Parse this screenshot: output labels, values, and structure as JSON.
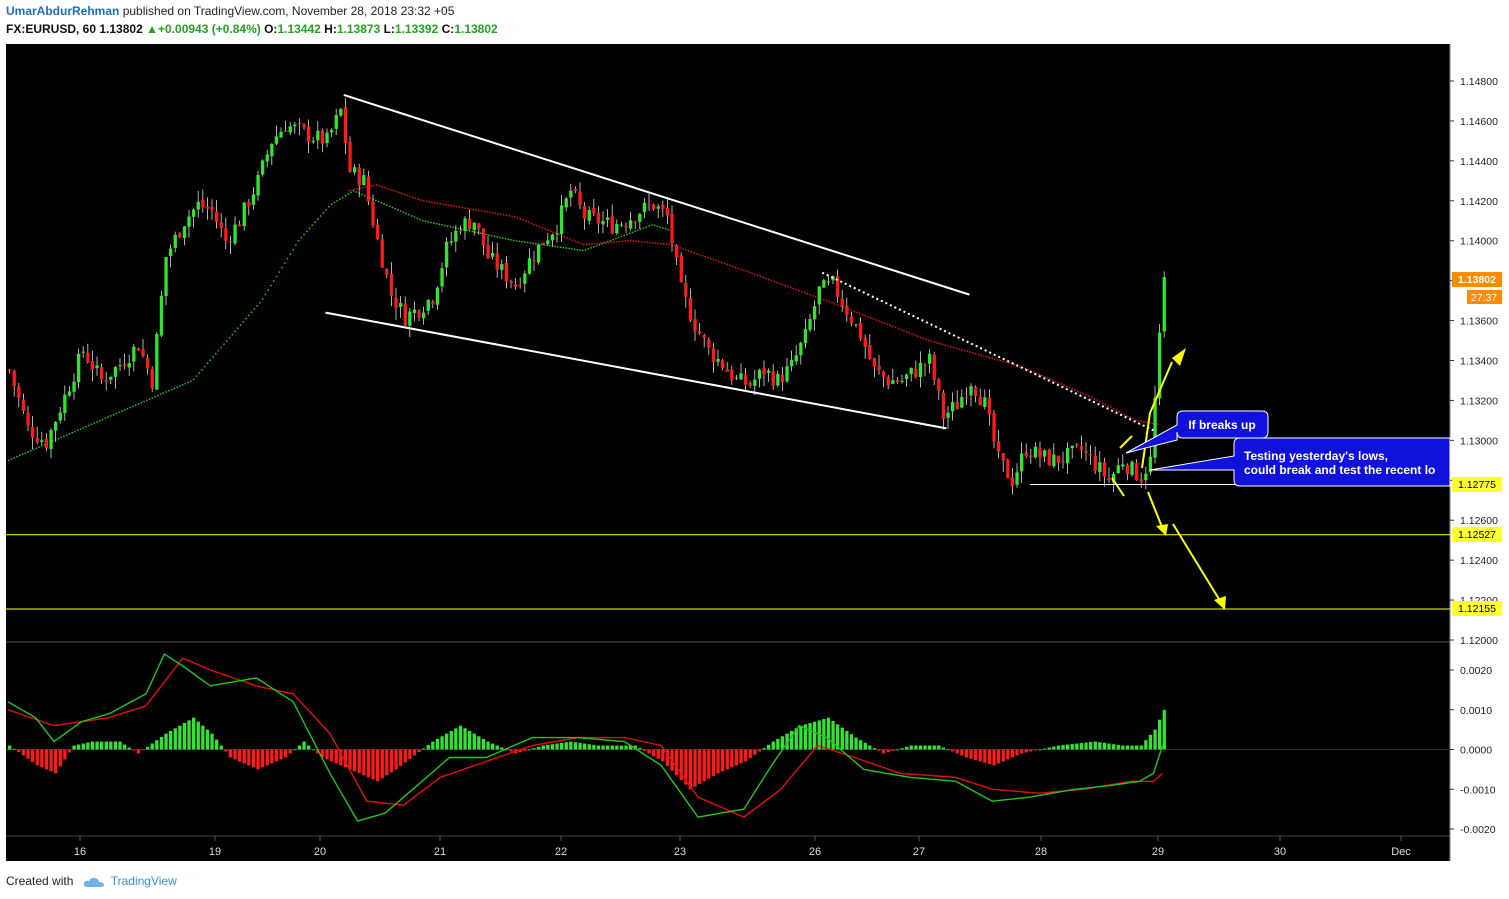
{
  "header": {
    "author": "UmarAbdurRehman",
    "published_text": "published on TradingView.com, November 28, 2018 23:32 +05",
    "symbol": "FX:EURUSD, 60",
    "last": "1.13802",
    "change_arrow": "▲",
    "change": "+0.00943 (+0.84%)",
    "o_label": "O:",
    "o_value": "1.13442",
    "h_label": "H:",
    "h_value": "1.13873",
    "l_label": "L:",
    "l_value": "1.13392",
    "c_label": "C:",
    "c_value": "1.13802"
  },
  "footer": {
    "created_with": "Created with",
    "brand": "TradingView"
  },
  "colors": {
    "bull": "#2ee62e",
    "bear": "#ff1a1a",
    "background": "#000000",
    "sma_fast": "#e01010",
    "sma_slow": "#21c421",
    "annotation": "#ffff00",
    "callout": "#1111dd"
  },
  "annotations": {
    "callout1": "If breaks up",
    "callout2_line1": "Testing yesterday's lows,",
    "callout2_line2": "could break and test the recent lo"
  },
  "price_badges": {
    "current": "1.13802",
    "countdown": "27:37",
    "level_1": "1.12775",
    "level_2": "1.12527",
    "level_3": "1.12155"
  },
  "chart_data": {
    "type": "candlestick",
    "symbol": "FX:EURUSD",
    "interval": "60",
    "x_tick_labels": [
      "16",
      "19",
      "20",
      "21",
      "22",
      "23",
      "26",
      "27",
      "28",
      "29",
      "30",
      "Dec"
    ],
    "price_axis": {
      "range": [
        1.119,
        1.1495
      ],
      "tick_labels": [
        "1.14800",
        "1.14600",
        "1.14400",
        "1.14200",
        "1.14000",
        "1.13800",
        "1.13600",
        "1.13400",
        "1.13200",
        "1.13000",
        "1.12800",
        "1.12600",
        "1.12400",
        "1.12200",
        "1.12000"
      ]
    },
    "macd_axis": {
      "range": [
        -0.0022,
        0.0027
      ],
      "tick_labels": [
        "0.0020",
        "0.0010",
        "0.0000",
        "-0.0010",
        "-0.0020"
      ]
    },
    "horizontal_levels": [
      1.12775,
      1.12527,
      1.12155
    ],
    "price_path": [
      [
        0,
        1.1335
      ],
      [
        4,
        1.1306
      ],
      [
        8,
        1.1299
      ],
      [
        12,
        1.1322
      ],
      [
        16,
        1.1345
      ],
      [
        20,
        1.133
      ],
      [
        24,
        1.1338
      ],
      [
        28,
        1.1348
      ],
      [
        31,
        1.133
      ],
      [
        34,
        1.1392
      ],
      [
        38,
        1.141
      ],
      [
        41,
        1.1418
      ],
      [
        44,
        1.1415
      ],
      [
        47,
        1.14
      ],
      [
        50,
        1.141
      ],
      [
        54,
        1.143
      ],
      [
        57,
        1.145
      ],
      [
        60,
        1.1458
      ],
      [
        63,
        1.1455
      ],
      [
        66,
        1.1452
      ],
      [
        69,
        1.145
      ],
      [
        72,
        1.1465
      ],
      [
        74,
        1.1435
      ],
      [
        77,
        1.143
      ],
      [
        80,
        1.14
      ],
      [
        83,
        1.1373
      ],
      [
        86,
        1.1362
      ],
      [
        89,
        1.1366
      ],
      [
        92,
        1.1372
      ],
      [
        95,
        1.1396
      ],
      [
        98,
        1.1408
      ],
      [
        101,
        1.141
      ],
      [
        104,
        1.1392
      ],
      [
        107,
        1.1385
      ],
      [
        110,
        1.1378
      ],
      [
        113,
        1.139
      ],
      [
        116,
        1.14
      ],
      [
        119,
        1.1408
      ],
      [
        122,
        1.1425
      ],
      [
        125,
        1.1412
      ],
      [
        128,
        1.141
      ],
      [
        131,
        1.1408
      ],
      [
        134,
        1.141
      ],
      [
        137,
        1.1415
      ],
      [
        140,
        1.1418
      ],
      [
        143,
        1.1412
      ],
      [
        146,
        1.1375
      ],
      [
        149,
        1.1358
      ],
      [
        152,
        1.1345
      ],
      [
        155,
        1.1338
      ],
      [
        158,
        1.133
      ],
      [
        161,
        1.1328
      ],
      [
        164,
        1.1335
      ],
      [
        167,
        1.133
      ],
      [
        170,
        1.1337
      ],
      [
        173,
        1.1352
      ],
      [
        176,
        1.1375
      ],
      [
        179,
        1.1378
      ],
      [
        182,
        1.1365
      ],
      [
        185,
        1.1353
      ],
      [
        188,
        1.1335
      ],
      [
        191,
        1.133
      ],
      [
        194,
        1.133
      ],
      [
        197,
        1.1335
      ],
      [
        200,
        1.134
      ],
      [
        203,
        1.1312
      ],
      [
        206,
        1.1318
      ],
      [
        209,
        1.133
      ],
      [
        212,
        1.1318
      ],
      [
        215,
        1.129
      ],
      [
        218,
        1.128
      ],
      [
        221,
        1.1296
      ],
      [
        224,
        1.1292
      ],
      [
        227,
        1.129
      ],
      [
        230,
        1.1292
      ],
      [
        233,
        1.1295
      ],
      [
        236,
        1.1288
      ],
      [
        239,
        1.128
      ],
      [
        242,
        1.129
      ],
      [
        244,
        1.1285
      ],
      [
        246,
        1.1282
      ],
      [
        248,
        1.129
      ],
      [
        250,
        1.135
      ],
      [
        251,
        1.138
      ]
    ],
    "sma_slow_path": [
      [
        0,
        1.129
      ],
      [
        20,
        1.131
      ],
      [
        40,
        1.133
      ],
      [
        55,
        1.137
      ],
      [
        63,
        1.14
      ],
      [
        70,
        1.1418
      ],
      [
        75,
        1.1425
      ],
      [
        90,
        1.141
      ],
      [
        110,
        1.14
      ],
      [
        125,
        1.1395
      ],
      [
        140,
        1.1408
      ],
      [
        144,
        1.1405
      ]
    ],
    "sma_fast_path": [
      [
        74,
        1.1425
      ],
      [
        80,
        1.1428
      ],
      [
        90,
        1.142
      ],
      [
        110,
        1.1412
      ],
      [
        125,
        1.1398
      ],
      [
        135,
        1.14
      ],
      [
        144,
        1.1398
      ],
      [
        160,
        1.1385
      ],
      [
        180,
        1.1368
      ],
      [
        200,
        1.135
      ],
      [
        220,
        1.1337
      ],
      [
        235,
        1.1322
      ],
      [
        245,
        1.131
      ],
      [
        250,
        1.1308
      ]
    ],
    "trendlines": [
      {
        "from": [
          73,
          1.1473
        ],
        "to": [
          209,
          1.1373
        ],
        "style": "solid"
      },
      {
        "from": [
          69,
          1.1364
        ],
        "to": [
          204,
          1.1306
        ],
        "style": "solid"
      },
      {
        "from": [
          177,
          1.1384
        ],
        "to": [
          249,
          1.1305
        ],
        "style": "dotted"
      }
    ],
    "macd_histogram": [
      [
        0,
        0.0001
      ],
      [
        6,
        -0.0004
      ],
      [
        10,
        -0.0006
      ],
      [
        14,
        0.0001
      ],
      [
        18,
        0.0002
      ],
      [
        24,
        0.0002
      ],
      [
        28,
        -0.0001
      ],
      [
        34,
        0.0004
      ],
      [
        40,
        0.0008
      ],
      [
        44,
        0.0004
      ],
      [
        48,
        -0.0002
      ],
      [
        54,
        -0.0005
      ],
      [
        60,
        -0.0002
      ],
      [
        64,
        0.0002
      ],
      [
        68,
        -0.0002
      ],
      [
        74,
        -0.0005
      ],
      [
        80,
        -0.0008
      ],
      [
        84,
        -0.0005
      ],
      [
        92,
        0.0002
      ],
      [
        98,
        0.0006
      ],
      [
        104,
        0.0002
      ],
      [
        110,
        -0.0001
      ],
      [
        116,
        0.0001
      ],
      [
        122,
        0.0002
      ],
      [
        128,
        0.0001
      ],
      [
        136,
        0.0001
      ],
      [
        142,
        -0.0003
      ],
      [
        148,
        -0.001
      ],
      [
        154,
        -0.0006
      ],
      [
        160,
        -0.0003
      ],
      [
        166,
        0.0002
      ],
      [
        172,
        0.0006
      ],
      [
        178,
        0.0008
      ],
      [
        184,
        0.0003
      ],
      [
        190,
        -0.0001
      ],
      [
        196,
        0.0001
      ],
      [
        202,
        0.0001
      ],
      [
        208,
        -0.0002
      ],
      [
        214,
        -0.0004
      ],
      [
        220,
        -0.0001
      ],
      [
        228,
        0.0001
      ],
      [
        236,
        0.0002
      ],
      [
        242,
        0.0001
      ],
      [
        246,
        0.0001
      ],
      [
        249,
        0.0005
      ],
      [
        251,
        0.001
      ]
    ],
    "macd_line": [
      [
        0,
        0.0012
      ],
      [
        6,
        0.0008
      ],
      [
        10,
        0.0002
      ],
      [
        16,
        0.0007
      ],
      [
        22,
        0.0009
      ],
      [
        30,
        0.0014
      ],
      [
        34,
        0.0024
      ],
      [
        38,
        0.0021
      ],
      [
        44,
        0.0016
      ],
      [
        54,
        0.0018
      ],
      [
        62,
        0.0012
      ],
      [
        70,
        -0.0006
      ],
      [
        76,
        -0.0018
      ],
      [
        82,
        -0.0016
      ],
      [
        90,
        -0.0008
      ],
      [
        96,
        -0.0002
      ],
      [
        104,
        -0.0002
      ],
      [
        114,
        0.0003
      ],
      [
        124,
        0.0003
      ],
      [
        134,
        0.0002
      ],
      [
        142,
        -0.0004
      ],
      [
        150,
        -0.0017
      ],
      [
        160,
        -0.0015
      ],
      [
        166,
        -0.0004
      ],
      [
        172,
        0.0006
      ],
      [
        178,
        0.0003
      ],
      [
        186,
        -0.0005
      ],
      [
        196,
        -0.0007
      ],
      [
        206,
        -0.0008
      ],
      [
        214,
        -0.0013
      ],
      [
        222,
        -0.0012
      ],
      [
        232,
        -0.001
      ],
      [
        240,
        -0.0009
      ],
      [
        246,
        -0.0008
      ],
      [
        249,
        -0.0006
      ],
      [
        251,
        0.0001
      ]
    ],
    "signal_line": [
      [
        0,
        0.001
      ],
      [
        10,
        0.0006
      ],
      [
        22,
        0.0008
      ],
      [
        30,
        0.0011
      ],
      [
        38,
        0.0023
      ],
      [
        44,
        0.002
      ],
      [
        54,
        0.0016
      ],
      [
        62,
        0.0014
      ],
      [
        70,
        0.0004
      ],
      [
        78,
        -0.0013
      ],
      [
        86,
        -0.0014
      ],
      [
        94,
        -0.0007
      ],
      [
        104,
        -0.0003
      ],
      [
        114,
        0.0001
      ],
      [
        124,
        0.0003
      ],
      [
        134,
        0.0003
      ],
      [
        142,
        0.0001
      ],
      [
        150,
        -0.0012
      ],
      [
        160,
        -0.0017
      ],
      [
        168,
        -0.001
      ],
      [
        176,
        0.0001
      ],
      [
        184,
        -0.0002
      ],
      [
        194,
        -0.0006
      ],
      [
        206,
        -0.0007
      ],
      [
        214,
        -0.001
      ],
      [
        224,
        -0.0011
      ],
      [
        234,
        -0.001
      ],
      [
        244,
        -0.0008
      ],
      [
        249,
        -0.0008
      ],
      [
        251,
        -0.0006
      ]
    ]
  }
}
